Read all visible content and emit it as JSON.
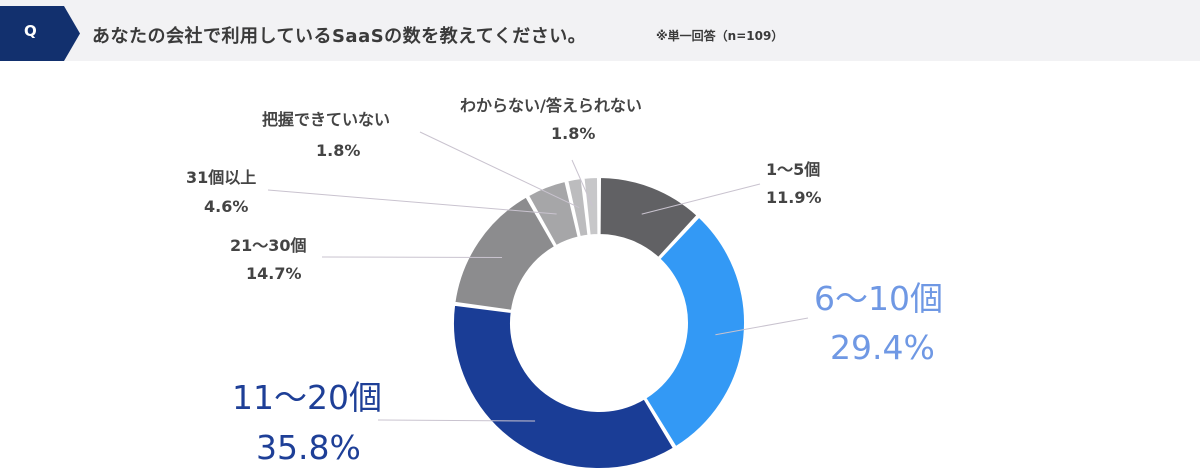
{
  "header": {
    "badge": "Q",
    "question": "あなたの会社で利用しているSaaSの数を教えてください。",
    "note": "※単一回答（n=109）"
  },
  "colors": {
    "badge": "#12306e",
    "header_bg": "#f2f2f4"
  },
  "chart_data": {
    "type": "pie",
    "donut": true,
    "categories": [
      "1～5個",
      "6～10個",
      "11～20個",
      "21～30個",
      "31個以上",
      "把握できていない",
      "わからない/答えられない"
    ],
    "values": [
      11.9,
      29.4,
      35.8,
      14.7,
      4.6,
      1.8,
      1.8
    ],
    "value_labels": [
      "11.9%",
      "29.4%",
      "35.8%",
      "14.7%",
      "4.6%",
      "1.8%",
      "1.8%"
    ],
    "colors": [
      "#616164",
      "#3399f5",
      "#1a3d96",
      "#8c8c8e",
      "#a6a6a8",
      "#bcbcbe",
      "#c7c7c9"
    ],
    "label_colors": [
      "#444444",
      "#6f98e4",
      "#1e3f97",
      "#444444",
      "#444444",
      "#444444",
      "#444444"
    ],
    "start_angle_deg": 0,
    "direction": "clockwise"
  }
}
